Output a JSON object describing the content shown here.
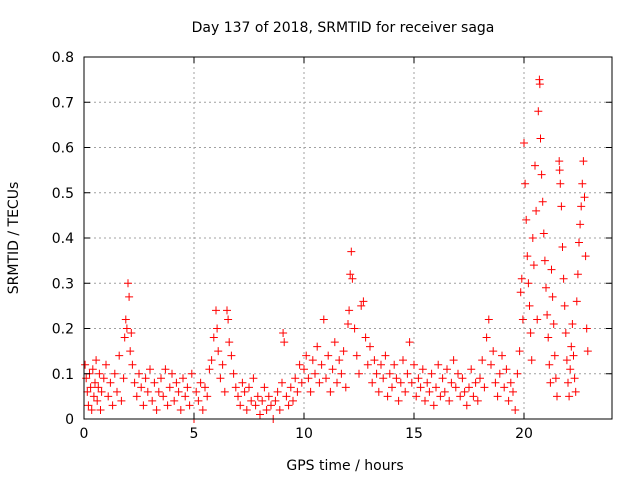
{
  "chart_data": {
    "type": "scatter",
    "title": "Day 137 of 2018, SRMTID for receiver saga",
    "xlabel": "GPS time / hours",
    "ylabel": "SRMTID / TECUs",
    "xlim": [
      0,
      24
    ],
    "ylim": [
      0,
      0.8
    ],
    "x_ticks": [
      0,
      5,
      10,
      15,
      20
    ],
    "x_tick_labels": [
      "0",
      "5",
      "10",
      "15",
      "20"
    ],
    "y_ticks": [
      0,
      0.1,
      0.2,
      0.3,
      0.4,
      0.5,
      0.6,
      0.7,
      0.8
    ],
    "y_tick_labels": [
      "0",
      "0.1",
      "0.2",
      "0.3",
      "0.4",
      "0.5",
      "0.6",
      "0.7",
      "0.8"
    ],
    "grid": true,
    "marker": "+",
    "series": [
      {
        "name": "SRMTID",
        "color": "#ff0000",
        "points": [
          [
            0.05,
            0.12
          ],
          [
            0.1,
            0.09
          ],
          [
            0.15,
            0.06
          ],
          [
            0.2,
            0.03
          ],
          [
            0.25,
            0.1
          ],
          [
            0.3,
            0.07
          ],
          [
            0.35,
            0.02
          ],
          [
            0.4,
            0.11
          ],
          [
            0.45,
            0.05
          ],
          [
            0.5,
            0.08
          ],
          [
            0.55,
            0.13
          ],
          [
            0.6,
            0.04
          ],
          [
            0.65,
            0.07
          ],
          [
            0.7,
            0.1
          ],
          [
            0.75,
            0.02
          ],
          [
            0.8,
            0.06
          ],
          [
            0.9,
            0.09
          ],
          [
            1.0,
            0.12
          ],
          [
            1.1,
            0.05
          ],
          [
            1.2,
            0.08
          ],
          [
            1.3,
            0.03
          ],
          [
            1.4,
            0.1
          ],
          [
            1.5,
            0.06
          ],
          [
            1.6,
            0.14
          ],
          [
            1.7,
            0.04
          ],
          [
            1.8,
            0.09
          ],
          [
            1.85,
            0.18
          ],
          [
            1.9,
            0.22
          ],
          [
            1.95,
            0.2
          ],
          [
            2.0,
            0.3
          ],
          [
            2.05,
            0.27
          ],
          [
            2.1,
            0.15
          ],
          [
            2.15,
            0.19
          ],
          [
            2.2,
            0.12
          ],
          [
            2.3,
            0.08
          ],
          [
            2.4,
            0.05
          ],
          [
            2.5,
            0.1
          ],
          [
            2.6,
            0.07
          ],
          [
            2.7,
            0.03
          ],
          [
            2.8,
            0.09
          ],
          [
            2.9,
            0.06
          ],
          [
            3.0,
            0.11
          ],
          [
            3.1,
            0.04
          ],
          [
            3.2,
            0.08
          ],
          [
            3.3,
            0.02
          ],
          [
            3.4,
            0.06
          ],
          [
            3.5,
            0.09
          ],
          [
            3.6,
            0.05
          ],
          [
            3.7,
            0.11
          ],
          [
            3.8,
            0.03
          ],
          [
            3.9,
            0.07
          ],
          [
            4.0,
            0.1
          ],
          [
            4.1,
            0.04
          ],
          [
            4.2,
            0.08
          ],
          [
            4.3,
            0.06
          ],
          [
            4.4,
            0.02
          ],
          [
            4.5,
            0.09
          ],
          [
            4.6,
            0.05
          ],
          [
            4.7,
            0.07
          ],
          [
            4.8,
            0.03
          ],
          [
            4.9,
            0.1
          ],
          [
            5.0,
            0.0
          ],
          [
            5.1,
            0.06
          ],
          [
            5.2,
            0.04
          ],
          [
            5.3,
            0.08
          ],
          [
            5.4,
            0.02
          ],
          [
            5.5,
            0.07
          ],
          [
            5.6,
            0.05
          ],
          [
            5.7,
            0.11
          ],
          [
            5.8,
            0.13
          ],
          [
            5.9,
            0.18
          ],
          [
            6.0,
            0.24
          ],
          [
            6.05,
            0.2
          ],
          [
            6.1,
            0.15
          ],
          [
            6.2,
            0.09
          ],
          [
            6.3,
            0.12
          ],
          [
            6.4,
            0.06
          ],
          [
            6.5,
            0.24
          ],
          [
            6.55,
            0.22
          ],
          [
            6.6,
            0.17
          ],
          [
            6.7,
            0.14
          ],
          [
            6.8,
            0.1
          ],
          [
            6.9,
            0.07
          ],
          [
            7.0,
            0.05
          ],
          [
            7.1,
            0.03
          ],
          [
            7.2,
            0.08
          ],
          [
            7.3,
            0.06
          ],
          [
            7.4,
            0.02
          ],
          [
            7.5,
            0.07
          ],
          [
            7.6,
            0.04
          ],
          [
            7.7,
            0.09
          ],
          [
            7.8,
            0.03
          ],
          [
            7.9,
            0.05
          ],
          [
            8.0,
            0.01
          ],
          [
            8.1,
            0.04
          ],
          [
            8.2,
            0.07
          ],
          [
            8.3,
            0.02
          ],
          [
            8.4,
            0.05
          ],
          [
            8.5,
            0.03
          ],
          [
            8.6,
            0.0
          ],
          [
            8.7,
            0.04
          ],
          [
            8.8,
            0.06
          ],
          [
            8.9,
            0.02
          ],
          [
            9.0,
            0.08
          ],
          [
            9.05,
            0.19
          ],
          [
            9.1,
            0.17
          ],
          [
            9.2,
            0.05
          ],
          [
            9.3,
            0.03
          ],
          [
            9.4,
            0.07
          ],
          [
            9.5,
            0.04
          ],
          [
            9.6,
            0.09
          ],
          [
            9.7,
            0.06
          ],
          [
            9.8,
            0.12
          ],
          [
            9.9,
            0.08
          ],
          [
            10.0,
            0.11
          ],
          [
            10.1,
            0.14
          ],
          [
            10.2,
            0.09
          ],
          [
            10.3,
            0.06
          ],
          [
            10.4,
            0.13
          ],
          [
            10.5,
            0.1
          ],
          [
            10.6,
            0.16
          ],
          [
            10.7,
            0.08
          ],
          [
            10.8,
            0.12
          ],
          [
            10.9,
            0.22
          ],
          [
            11.0,
            0.09
          ],
          [
            11.1,
            0.14
          ],
          [
            11.2,
            0.06
          ],
          [
            11.3,
            0.11
          ],
          [
            11.4,
            0.17
          ],
          [
            11.5,
            0.08
          ],
          [
            11.6,
            0.13
          ],
          [
            11.7,
            0.1
          ],
          [
            11.8,
            0.15
          ],
          [
            11.9,
            0.07
          ],
          [
            12.0,
            0.21
          ],
          [
            12.05,
            0.24
          ],
          [
            12.1,
            0.32
          ],
          [
            12.15,
            0.37
          ],
          [
            12.2,
            0.31
          ],
          [
            12.3,
            0.2
          ],
          [
            12.4,
            0.14
          ],
          [
            12.5,
            0.1
          ],
          [
            12.6,
            0.25
          ],
          [
            12.7,
            0.26
          ],
          [
            12.8,
            0.18
          ],
          [
            12.9,
            0.12
          ],
          [
            13.0,
            0.16
          ],
          [
            13.1,
            0.08
          ],
          [
            13.2,
            0.13
          ],
          [
            13.3,
            0.1
          ],
          [
            13.4,
            0.06
          ],
          [
            13.5,
            0.12
          ],
          [
            13.6,
            0.09
          ],
          [
            13.7,
            0.14
          ],
          [
            13.8,
            0.05
          ],
          [
            13.9,
            0.1
          ],
          [
            14.0,
            0.07
          ],
          [
            14.1,
            0.12
          ],
          [
            14.2,
            0.09
          ],
          [
            14.3,
            0.04
          ],
          [
            14.4,
            0.08
          ],
          [
            14.5,
            0.13
          ],
          [
            14.6,
            0.06
          ],
          [
            14.7,
            0.1
          ],
          [
            14.8,
            0.17
          ],
          [
            14.9,
            0.08
          ],
          [
            15.0,
            0.12
          ],
          [
            15.1,
            0.05
          ],
          [
            15.2,
            0.09
          ],
          [
            15.3,
            0.07
          ],
          [
            15.4,
            0.11
          ],
          [
            15.5,
            0.04
          ],
          [
            15.6,
            0.08
          ],
          [
            15.7,
            0.06
          ],
          [
            15.8,
            0.1
          ],
          [
            15.9,
            0.03
          ],
          [
            16.0,
            0.07
          ],
          [
            16.1,
            0.12
          ],
          [
            16.2,
            0.05
          ],
          [
            16.3,
            0.09
          ],
          [
            16.4,
            0.06
          ],
          [
            16.5,
            0.11
          ],
          [
            16.6,
            0.04
          ],
          [
            16.7,
            0.08
          ],
          [
            16.8,
            0.13
          ],
          [
            16.9,
            0.07
          ],
          [
            17.0,
            0.1
          ],
          [
            17.1,
            0.05
          ],
          [
            17.2,
            0.09
          ],
          [
            17.3,
            0.06
          ],
          [
            17.4,
            0.03
          ],
          [
            17.5,
            0.07
          ],
          [
            17.6,
            0.11
          ],
          [
            17.7,
            0.05
          ],
          [
            17.8,
            0.08
          ],
          [
            17.9,
            0.04
          ],
          [
            18.0,
            0.09
          ],
          [
            18.1,
            0.13
          ],
          [
            18.2,
            0.07
          ],
          [
            18.3,
            0.18
          ],
          [
            18.4,
            0.22
          ],
          [
            18.5,
            0.12
          ],
          [
            18.6,
            0.15
          ],
          [
            18.7,
            0.08
          ],
          [
            18.8,
            0.05
          ],
          [
            18.9,
            0.1
          ],
          [
            19.0,
            0.14
          ],
          [
            19.1,
            0.07
          ],
          [
            19.2,
            0.11
          ],
          [
            19.3,
            0.04
          ],
          [
            19.4,
            0.08
          ],
          [
            19.5,
            0.06
          ],
          [
            19.6,
            0.02
          ],
          [
            19.7,
            0.1
          ],
          [
            19.8,
            0.15
          ],
          [
            19.85,
            0.28
          ],
          [
            19.9,
            0.31
          ],
          [
            19.95,
            0.22
          ],
          [
            20.0,
            0.61
          ],
          [
            20.05,
            0.52
          ],
          [
            20.1,
            0.44
          ],
          [
            20.15,
            0.36
          ],
          [
            20.2,
            0.3
          ],
          [
            20.25,
            0.25
          ],
          [
            20.3,
            0.19
          ],
          [
            20.35,
            0.13
          ],
          [
            20.4,
            0.4
          ],
          [
            20.45,
            0.34
          ],
          [
            20.5,
            0.56
          ],
          [
            20.55,
            0.46
          ],
          [
            20.6,
            0.22
          ],
          [
            20.65,
            0.68
          ],
          [
            20.7,
            0.75
          ],
          [
            20.72,
            0.74
          ],
          [
            20.75,
            0.62
          ],
          [
            20.8,
            0.54
          ],
          [
            20.85,
            0.48
          ],
          [
            20.9,
            0.41
          ],
          [
            20.95,
            0.35
          ],
          [
            21.0,
            0.29
          ],
          [
            21.05,
            0.23
          ],
          [
            21.1,
            0.18
          ],
          [
            21.15,
            0.12
          ],
          [
            21.2,
            0.08
          ],
          [
            21.25,
            0.33
          ],
          [
            21.3,
            0.27
          ],
          [
            21.35,
            0.21
          ],
          [
            21.4,
            0.14
          ],
          [
            21.45,
            0.09
          ],
          [
            21.5,
            0.05
          ],
          [
            21.6,
            0.57
          ],
          [
            21.62,
            0.55
          ],
          [
            21.65,
            0.52
          ],
          [
            21.7,
            0.47
          ],
          [
            21.75,
            0.38
          ],
          [
            21.8,
            0.31
          ],
          [
            21.85,
            0.25
          ],
          [
            21.9,
            0.19
          ],
          [
            21.95,
            0.13
          ],
          [
            22.0,
            0.08
          ],
          [
            22.05,
            0.05
          ],
          [
            22.1,
            0.11
          ],
          [
            22.15,
            0.16
          ],
          [
            22.2,
            0.21
          ],
          [
            22.25,
            0.14
          ],
          [
            22.3,
            0.09
          ],
          [
            22.35,
            0.06
          ],
          [
            22.4,
            0.26
          ],
          [
            22.45,
            0.32
          ],
          [
            22.5,
            0.39
          ],
          [
            22.55,
            0.43
          ],
          [
            22.6,
            0.47
          ],
          [
            22.65,
            0.52
          ],
          [
            22.7,
            0.57
          ],
          [
            22.75,
            0.49
          ],
          [
            22.8,
            0.36
          ],
          [
            22.85,
            0.2
          ],
          [
            22.9,
            0.15
          ]
        ]
      }
    ]
  }
}
